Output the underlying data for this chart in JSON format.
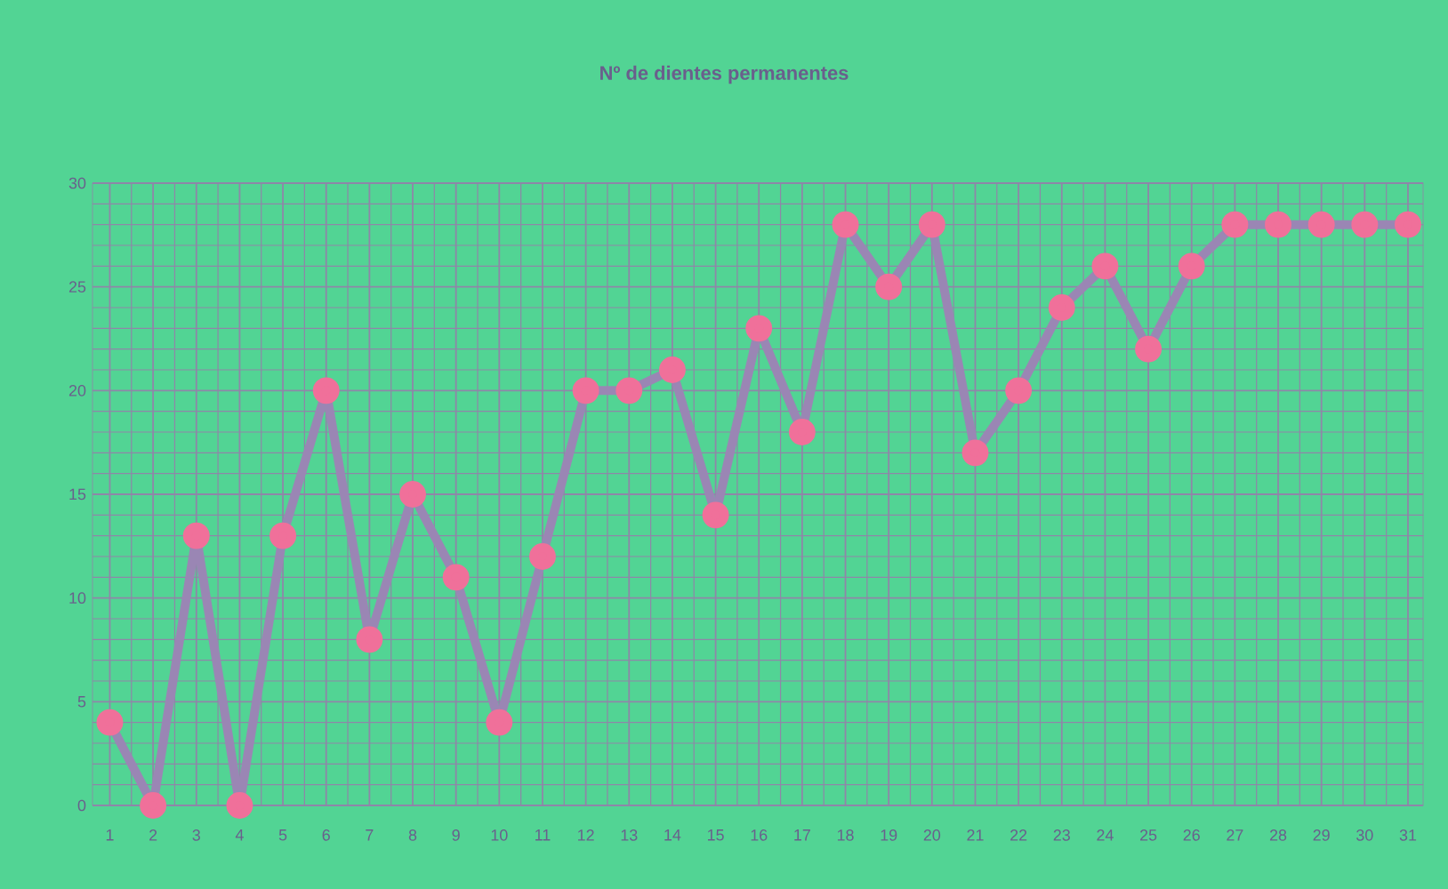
{
  "chart_data": {
    "type": "line",
    "title": "Nº de dientes permanentes",
    "categories": [
      "1",
      "2",
      "3",
      "4",
      "5",
      "6",
      "7",
      "8",
      "9",
      "10",
      "11",
      "12",
      "13",
      "14",
      "15",
      "16",
      "17",
      "18",
      "19",
      "20",
      "21",
      "22",
      "23",
      "24",
      "25",
      "26",
      "27",
      "28",
      "29",
      "30",
      "31"
    ],
    "series": [
      {
        "color": "#9a86b4",
        "values": [
          4,
          0,
          13,
          0,
          13,
          20,
          8,
          15,
          11,
          4,
          12,
          20,
          20,
          21,
          14,
          23,
          18,
          28,
          25,
          28,
          17,
          20,
          24,
          26,
          22,
          26,
          28,
          28,
          28,
          28,
          28
        ]
      }
    ],
    "ylim": [
      0,
      30
    ],
    "yticks": [
      0,
      5,
      10,
      15,
      20,
      25,
      30
    ],
    "grid": true,
    "marker": "circle",
    "line_style": "solid"
  }
}
